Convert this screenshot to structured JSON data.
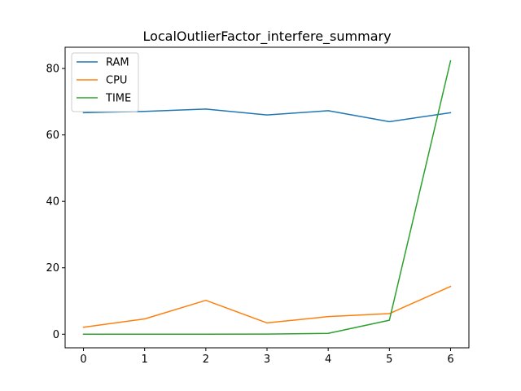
{
  "chart_data": {
    "type": "line",
    "title": "LocalOutlierFactor_interfere_summary",
    "xlabel": "",
    "ylabel": "",
    "x": [
      0,
      1,
      2,
      3,
      4,
      5,
      6
    ],
    "xlim": [
      -0.3,
      6.3
    ],
    "ylim": [
      -4.1,
      86.4
    ],
    "xticks": [
      0,
      1,
      2,
      3,
      4,
      5,
      6
    ],
    "yticks": [
      0,
      20,
      40,
      60,
      80
    ],
    "grid": false,
    "legend_position": "top-left",
    "series": [
      {
        "name": "RAM",
        "color": "#1f77b4",
        "values": [
          66.7,
          67.1,
          67.8,
          66.0,
          67.3,
          64.0,
          66.7
        ]
      },
      {
        "name": "CPU",
        "color": "#ff7f0e",
        "values": [
          2.1,
          4.6,
          10.2,
          3.4,
          5.3,
          6.2,
          14.4
        ]
      },
      {
        "name": "TIME",
        "color": "#2ca02c",
        "values": [
          0.0,
          0.0,
          0.0,
          0.05,
          0.25,
          4.2,
          82.3
        ]
      }
    ]
  }
}
